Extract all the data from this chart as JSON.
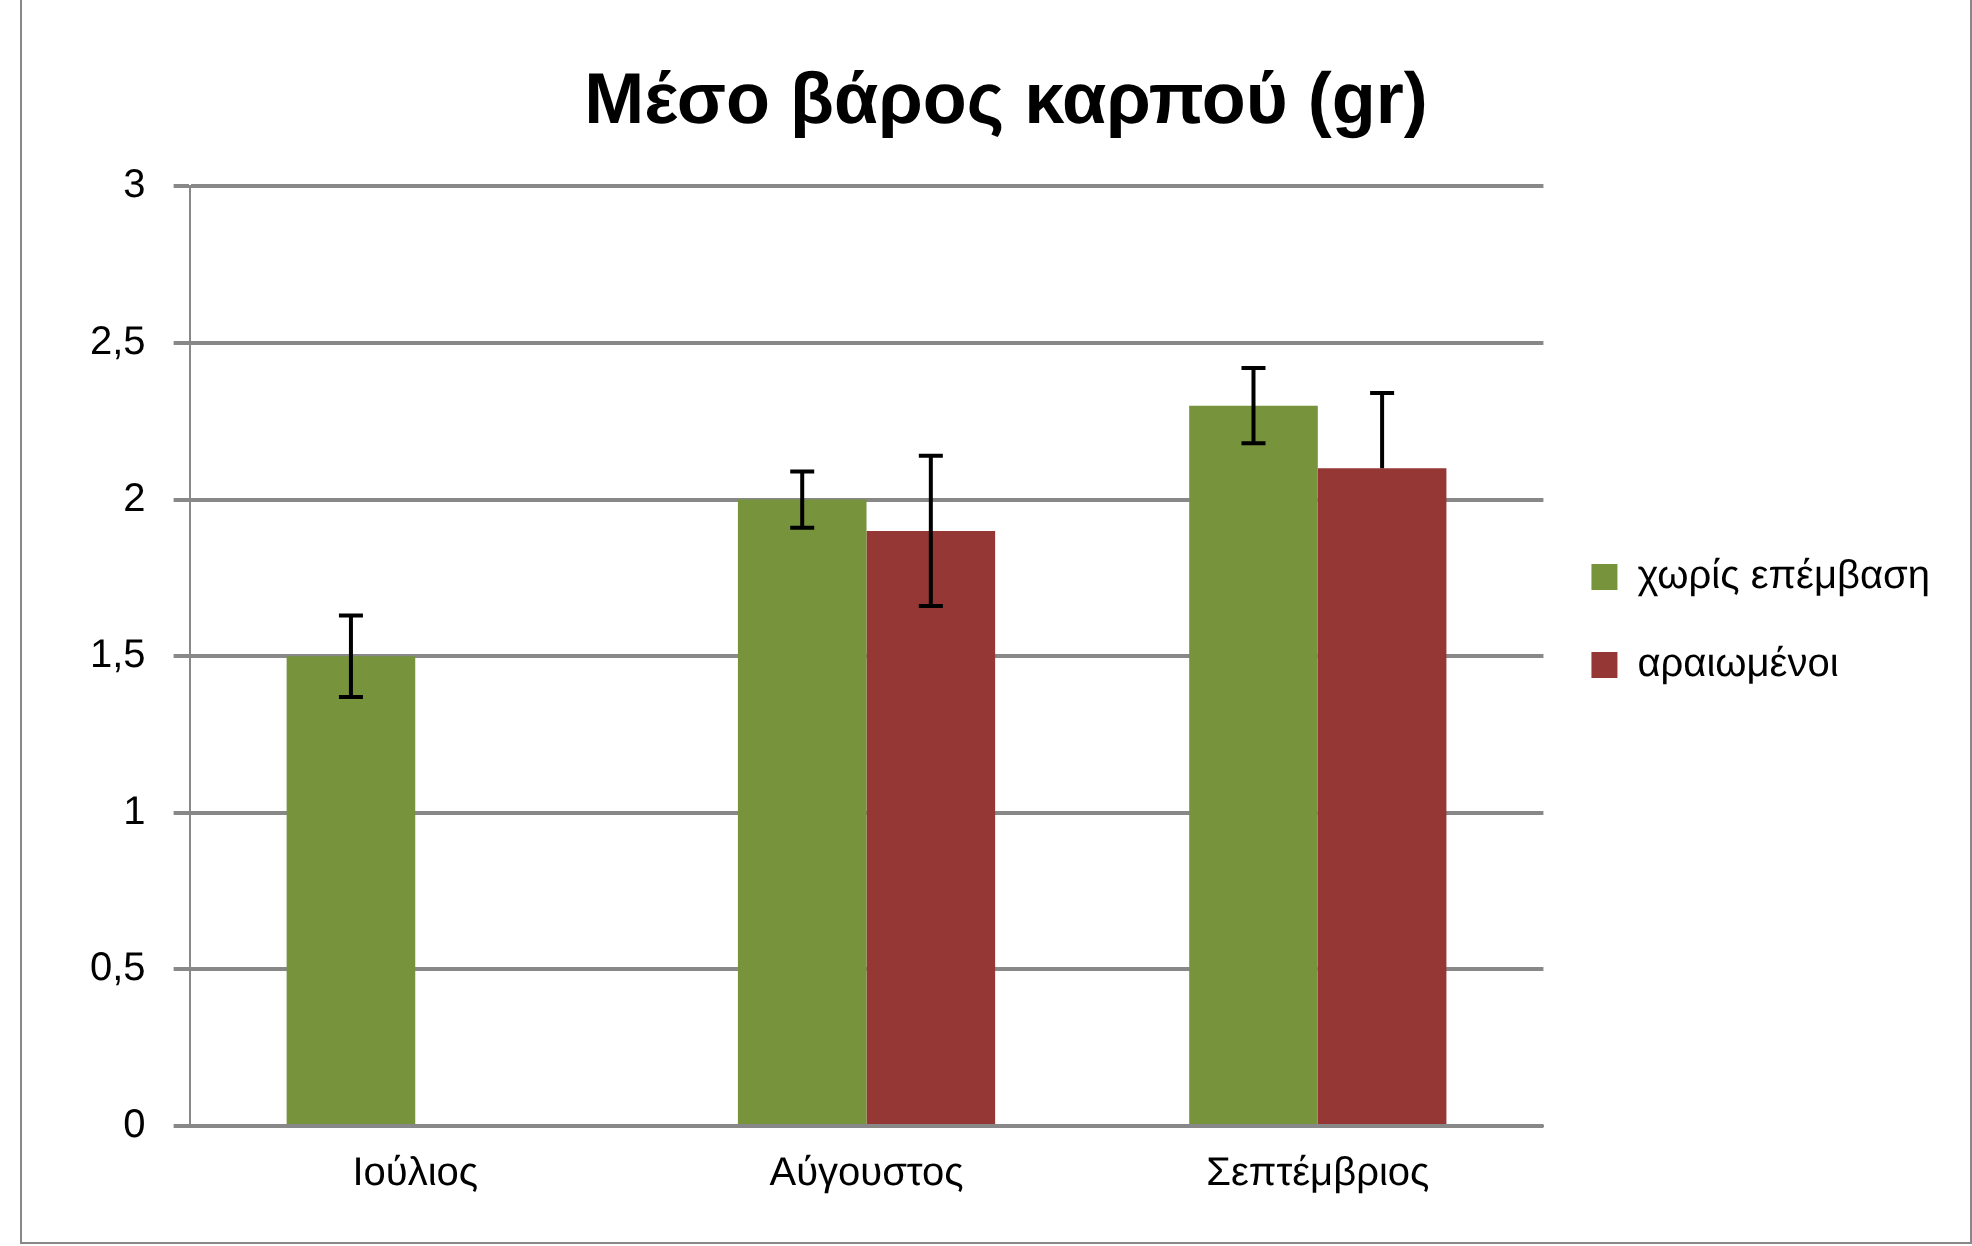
{
  "chart_data": {
    "type": "bar",
    "title": "Μέσο βάρος καρπού (gr)",
    "categories": [
      "Ιούλιος",
      "Αύγουστος",
      "Σεπτέμβριος"
    ],
    "series": [
      {
        "name": "χωρίς επέμβαση",
        "color": "#77933c",
        "values": [
          1.5,
          2,
          2.3
        ],
        "errors": [
          0.13,
          0.09,
          0.12
        ]
      },
      {
        "name": "αραιωμένοι",
        "color": "#953735",
        "values": [
          null,
          1.9,
          2.1
        ],
        "errors": [
          null,
          0.24,
          [
            2.1,
            2.34
          ]
        ]
      }
    ],
    "ylim": [
      0,
      3
    ],
    "yticks": [
      {
        "value": 0,
        "label": "0"
      },
      {
        "value": 0.5,
        "label": "0,5"
      },
      {
        "value": 1,
        "label": "1"
      },
      {
        "value": 1.5,
        "label": "1,5"
      },
      {
        "value": 2,
        "label": "2"
      },
      {
        "value": 2.5,
        "label": "2,5"
      },
      {
        "value": 3,
        "label": "3"
      }
    ],
    "grid": "y",
    "legend": "right"
  }
}
